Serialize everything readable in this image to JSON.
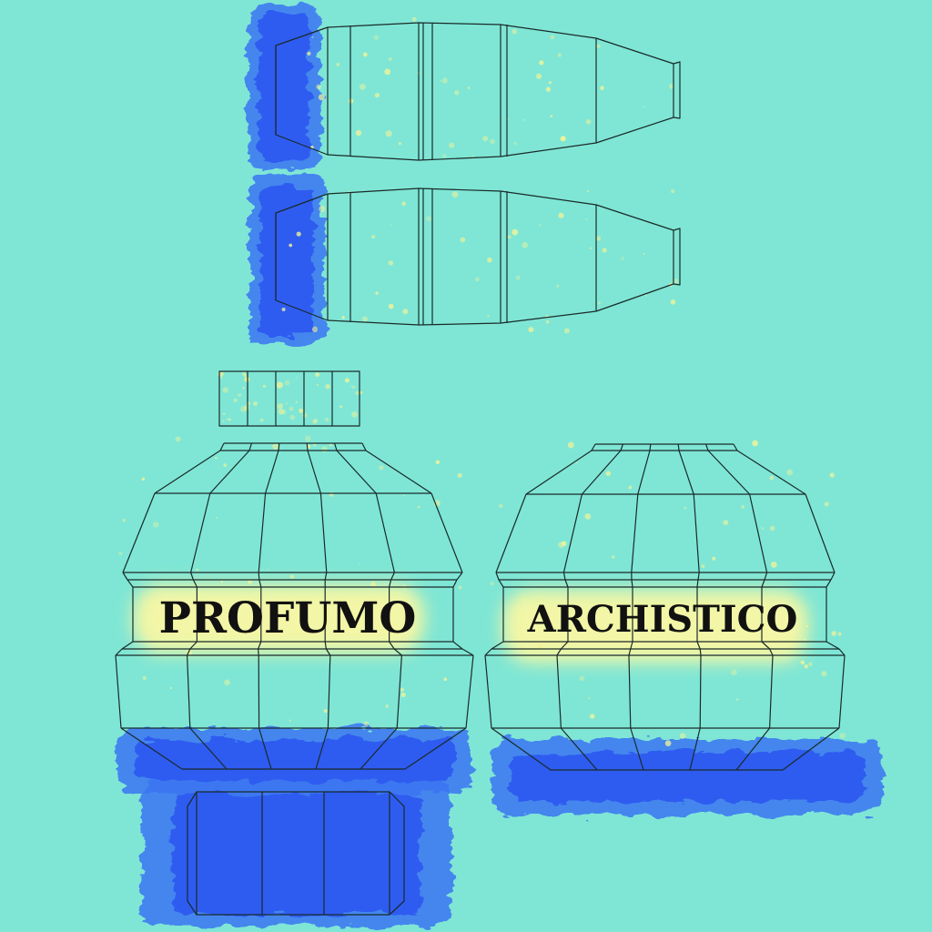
{
  "texture": {
    "background_color": "#7fe6d5",
    "paint_blue": "#2f5cf0",
    "paint_blue_light": "#3b74f2",
    "glow_yellow": "#f2f6a6",
    "speckle_yellow": "#f0f39a",
    "wire_color": "#1a2a2a"
  },
  "labels": {
    "left": "PROFUMO",
    "right": "ARCHISTICO"
  }
}
